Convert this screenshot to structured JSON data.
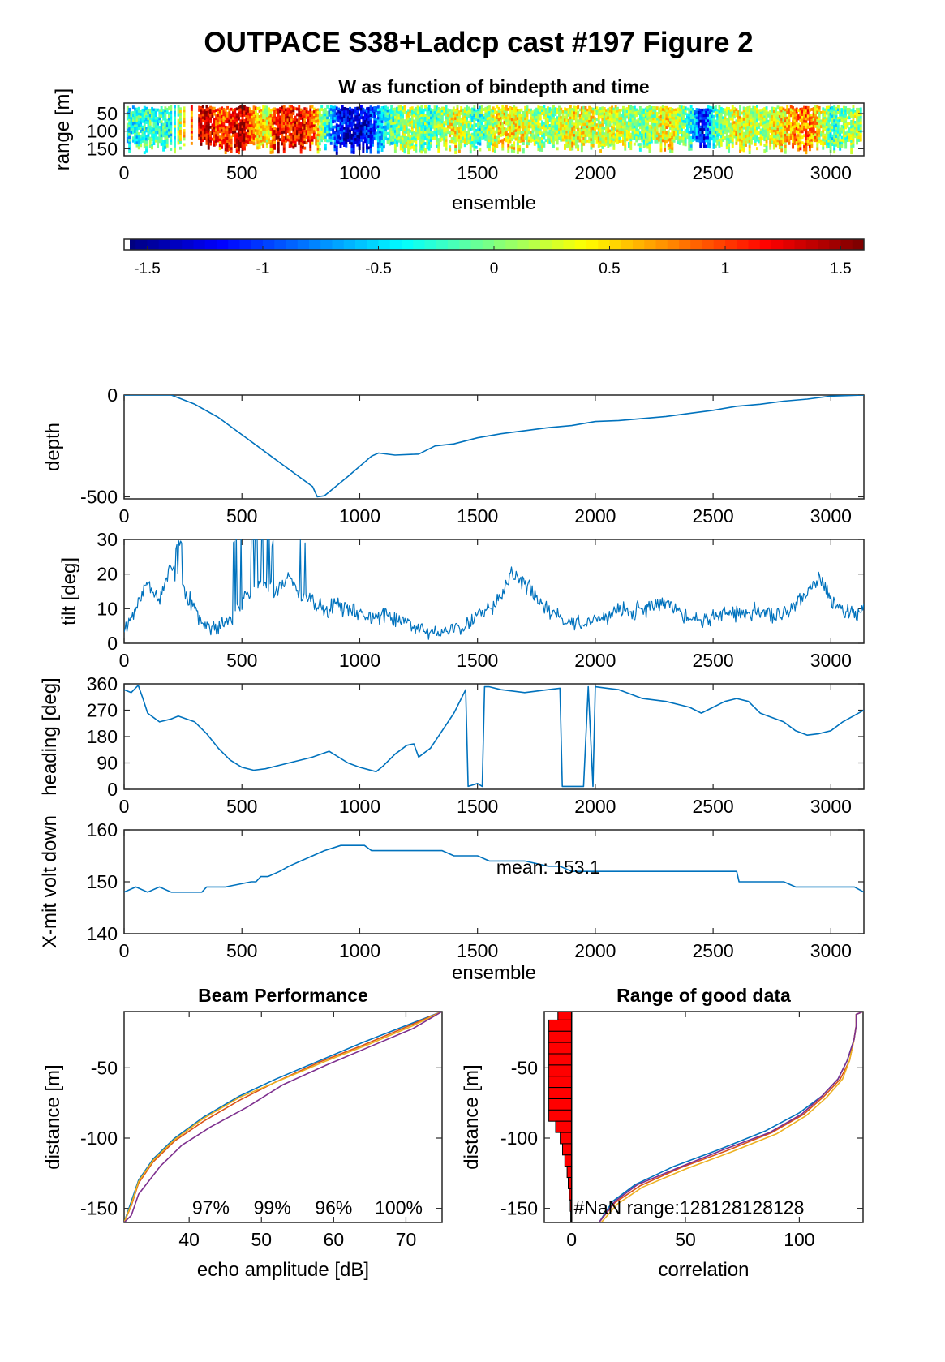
{
  "figure_title": "OUTPACE S38+Ladcp cast #197 Figure 2",
  "colors": {
    "line": "#0072BD",
    "beam_colors": [
      "#0072BD",
      "#D95319",
      "#EDB120",
      "#7E2F8E"
    ],
    "bar_fill": "#ff0000",
    "colormap": "jet"
  },
  "chart_data": [
    {
      "id": "w-panel",
      "type": "heatmap",
      "title": "W as function of bindepth and time",
      "xlabel": "ensemble",
      "ylabel": "range [m]",
      "xlim": [
        0,
        3140
      ],
      "ylim": [
        20,
        170
      ],
      "y_reversed": true,
      "x_ticks": [
        "0",
        "500",
        "1000",
        "1500",
        "2000",
        "2500",
        "3000"
      ],
      "y_ticks": [
        "50",
        "100",
        "150"
      ],
      "colorbar": {
        "clim": [
          -1.6,
          1.6
        ],
        "ticks": [
          "-1.5",
          "-1",
          "-0.5",
          "0",
          "0.5",
          "1",
          "1.5"
        ]
      },
      "w_profile": {
        "ensemble": [
          0,
          100,
          200,
          300,
          350,
          400,
          450,
          500,
          550,
          600,
          650,
          700,
          750,
          800,
          850,
          900,
          950,
          1000,
          1050,
          1100,
          1200,
          1300,
          1400,
          1500,
          1600,
          1700,
          1800,
          1900,
          2000,
          2100,
          2200,
          2300,
          2400,
          2450,
          2500,
          2600,
          2700,
          2800,
          2900,
          3000,
          3100
        ],
        "w": [
          -0.4,
          -0.2,
          -0.3,
          1.2,
          1.4,
          0.9,
          1.1,
          1.5,
          0.7,
          0.3,
          1.3,
          1.1,
          1.2,
          0.9,
          -0.2,
          -1.1,
          -1.3,
          -1.4,
          -1.0,
          -0.4,
          0.2,
          -0.2,
          0.4,
          -0.3,
          0.5,
          0.3,
          0.0,
          0.4,
          0.3,
          0.2,
          -0.1,
          0.5,
          -0.3,
          -1.3,
          -0.2,
          0.4,
          0.1,
          0.5,
          0.9,
          -0.2,
          0.1
        ]
      }
    },
    {
      "id": "depth-panel",
      "type": "line",
      "title": "",
      "xlabel": "",
      "ylabel": "depth",
      "xlim": [
        0,
        3140
      ],
      "ylim": [
        -510,
        0
      ],
      "x_ticks": [
        "0",
        "500",
        "1000",
        "1500",
        "2000",
        "2500",
        "3000"
      ],
      "y_ticks": [
        "0",
        "-500"
      ],
      "x": [
        0,
        200,
        300,
        400,
        500,
        600,
        700,
        800,
        820,
        850,
        950,
        1050,
        1080,
        1150,
        1250,
        1320,
        1400,
        1500,
        1600,
        1700,
        1800,
        1900,
        2000,
        2100,
        2200,
        2300,
        2400,
        2500,
        2600,
        2700,
        2800,
        2900,
        3000,
        3140
      ],
      "y": [
        0,
        0,
        -45,
        -110,
        -195,
        -280,
        -365,
        -450,
        -500,
        -495,
        -400,
        -300,
        -285,
        -295,
        -290,
        -250,
        -240,
        -210,
        -190,
        -175,
        -160,
        -150,
        -130,
        -125,
        -115,
        -105,
        -90,
        -75,
        -55,
        -45,
        -30,
        -20,
        -5,
        0
      ]
    },
    {
      "id": "tilt-panel",
      "type": "line",
      "title": "",
      "xlabel": "",
      "ylabel": "tilt [deg]",
      "xlim": [
        0,
        3140
      ],
      "ylim": [
        0,
        30
      ],
      "x_ticks": [
        "0",
        "500",
        "1000",
        "1500",
        "2000",
        "2500",
        "3000"
      ],
      "y_ticks": [
        "0",
        "10",
        "20",
        "30"
      ],
      "x": [
        0,
        50,
        100,
        150,
        200,
        250,
        300,
        350,
        400,
        450,
        500,
        550,
        600,
        650,
        700,
        750,
        800,
        850,
        900,
        1000,
        1100,
        1200,
        1300,
        1350,
        1400,
        1450,
        1500,
        1550,
        1600,
        1650,
        1700,
        1800,
        1900,
        1950,
        2000,
        2100,
        2200,
        2300,
        2400,
        2450,
        2500,
        2600,
        2700,
        2800,
        2850,
        2900,
        2950,
        3000,
        3050,
        3100,
        3140
      ],
      "y": [
        4,
        10,
        18,
        13,
        22,
        16,
        10,
        5,
        4,
        7,
        12,
        15,
        18,
        14,
        20,
        14,
        12,
        9,
        11,
        8,
        8,
        6,
        3,
        3,
        4,
        5,
        8,
        10,
        14,
        20,
        17,
        10,
        6,
        5,
        7,
        9,
        10,
        12,
        7,
        6,
        8,
        9,
        9,
        8,
        12,
        14,
        19,
        13,
        10,
        8,
        11
      ],
      "clipped_spikes": [
        [
          210,
          30
        ],
        [
          230,
          27
        ],
        [
          480,
          28
        ],
        [
          550,
          30
        ],
        [
          600,
          30
        ],
        [
          620,
          28
        ],
        [
          760,
          26
        ]
      ]
    },
    {
      "id": "heading-panel",
      "type": "line",
      "title": "",
      "xlabel": "",
      "ylabel": "heading [deg]",
      "xlim": [
        0,
        3140
      ],
      "ylim": [
        0,
        360
      ],
      "x_ticks": [
        "0",
        "500",
        "1000",
        "1500",
        "2000",
        "2500",
        "3000"
      ],
      "y_ticks": [
        "0",
        "90",
        "180",
        "270",
        "360"
      ],
      "x": [
        0,
        30,
        60,
        80,
        100,
        150,
        200,
        230,
        300,
        350,
        400,
        450,
        500,
        550,
        600,
        700,
        800,
        870,
        950,
        1000,
        1070,
        1100,
        1150,
        1200,
        1230,
        1250,
        1300,
        1350,
        1400,
        1450,
        1460,
        1500,
        1520,
        1530,
        1550,
        1600,
        1700,
        1800,
        1850,
        1860,
        1950,
        1970,
        1990,
        2000,
        2050,
        2100,
        2200,
        2300,
        2400,
        2450,
        2500,
        2550,
        2600,
        2650,
        2700,
        2800,
        2850,
        2900,
        2950,
        3000,
        3050,
        3140
      ],
      "y": [
        340,
        330,
        355,
        310,
        260,
        230,
        240,
        250,
        230,
        190,
        140,
        100,
        75,
        65,
        70,
        90,
        110,
        130,
        90,
        75,
        60,
        80,
        120,
        150,
        155,
        110,
        140,
        200,
        260,
        340,
        10,
        20,
        10,
        350,
        350,
        340,
        330,
        340,
        345,
        10,
        10,
        350,
        10,
        350,
        345,
        340,
        310,
        300,
        280,
        260,
        280,
        300,
        310,
        300,
        260,
        230,
        200,
        185,
        190,
        200,
        230,
        270
      ]
    },
    {
      "id": "volt-panel",
      "type": "line",
      "title": "",
      "xlabel": "ensemble",
      "ylabel": "X-mit volt down",
      "xlim": [
        0,
        3140
      ],
      "ylim": [
        140,
        160
      ],
      "x_ticks": [
        "0",
        "500",
        "1000",
        "1500",
        "2000",
        "2500",
        "3000"
      ],
      "y_ticks": [
        "140",
        "150",
        "160"
      ],
      "annotation": "mean: 153.1",
      "x": [
        0,
        50,
        100,
        150,
        200,
        330,
        350,
        430,
        540,
        560,
        580,
        610,
        660,
        700,
        750,
        800,
        850,
        920,
        940,
        1020,
        1050,
        1100,
        1200,
        1350,
        1400,
        1500,
        1550,
        1600,
        1700,
        1800,
        1850,
        1900,
        1950,
        2000,
        2100,
        2400,
        2450,
        2500,
        2600,
        2610,
        2800,
        2850,
        3000,
        3100,
        3140
      ],
      "y": [
        148,
        149,
        148,
        149,
        148,
        148,
        149,
        149,
        150,
        150,
        151,
        151,
        152,
        153,
        154,
        155,
        156,
        157,
        157,
        157,
        156,
        156,
        156,
        156,
        155,
        155,
        154,
        154,
        154,
        153,
        153,
        152,
        152,
        152,
        152,
        152,
        152,
        152,
        152,
        150,
        150,
        149,
        149,
        149,
        148
      ]
    },
    {
      "id": "beam-panel",
      "type": "line",
      "title": "Beam Performance",
      "xlabel": "echo amplitude [dB]",
      "ylabel": "distance [m]",
      "xlim": [
        31,
        75
      ],
      "ylim": [
        -160,
        -10
      ],
      "x_ticks": [
        "40",
        "50",
        "60",
        "70"
      ],
      "y_ticks": [
        "-50",
        "-100",
        "-150"
      ],
      "labels": [
        "97%",
        "99%",
        "96%",
        "100%"
      ],
      "series": [
        {
          "x": [
            31,
            32,
            33,
            35,
            38,
            42,
            47,
            52,
            58,
            64,
            70,
            75
          ],
          "y": [
            -160,
            -145,
            -130,
            -115,
            -100,
            -85,
            -70,
            -58,
            -45,
            -32,
            -20,
            -10
          ]
        },
        {
          "x": [
            31,
            32,
            33,
            35,
            38,
            42,
            47,
            52,
            58,
            64,
            70,
            75
          ],
          "y": [
            -160,
            -148,
            -132,
            -117,
            -102,
            -88,
            -73,
            -60,
            -46,
            -34,
            -21,
            -10
          ]
        },
        {
          "x": [
            31,
            32,
            33,
            35,
            38,
            42,
            47,
            53,
            59,
            65,
            71,
            75
          ],
          "y": [
            -160,
            -147,
            -131,
            -116,
            -101,
            -86,
            -71,
            -58,
            -45,
            -33,
            -20,
            -10
          ]
        },
        {
          "x": [
            31,
            32,
            33,
            36,
            39,
            43,
            48,
            53,
            59,
            65,
            71,
            75
          ],
          "y": [
            -160,
            -155,
            -140,
            -120,
            -105,
            -92,
            -78,
            -62,
            -48,
            -35,
            -22,
            -10
          ]
        }
      ]
    },
    {
      "id": "range-panel",
      "type": "line",
      "title": "Range of good data",
      "xlabel": "correlation",
      "ylabel": "distance [m]",
      "xlim": [
        -12,
        128
      ],
      "ylim": [
        -160,
        -10
      ],
      "x_ticks": [
        "0",
        "50",
        "100"
      ],
      "y_ticks": [
        "-50",
        "-100",
        "-150"
      ],
      "annotation": "#NaN range:128128128128",
      "nan_bars": {
        "distance": [
          -12,
          -20,
          -28,
          -36,
          -44,
          -52,
          -60,
          -68,
          -76,
          -84,
          -92,
          -100,
          -108,
          -116,
          -124,
          -132,
          -140,
          -148,
          -156
        ],
        "count": [
          6,
          10,
          10,
          10,
          10,
          10,
          10,
          10,
          10,
          10,
          7,
          5,
          4,
          3,
          2,
          1.5,
          1,
          0.6,
          0.4
        ]
      },
      "series": [
        {
          "x": [
            12,
            18,
            28,
            45,
            65,
            85,
            100,
            110,
            117,
            121,
            124,
            125,
            125,
            128
          ],
          "y": [
            -160,
            -145,
            -133,
            -120,
            -108,
            -95,
            -82,
            -70,
            -58,
            -45,
            -30,
            -20,
            -12,
            -10
          ]
        },
        {
          "x": [
            12,
            19,
            30,
            48,
            68,
            88,
            102,
            111,
            118,
            122,
            124,
            125,
            125,
            128
          ],
          "y": [
            -160,
            -146,
            -134,
            -121,
            -109,
            -96,
            -83,
            -70,
            -58,
            -45,
            -30,
            -20,
            -12,
            -10
          ]
        },
        {
          "x": [
            13,
            20,
            31,
            50,
            70,
            90,
            103,
            112,
            119,
            122,
            124,
            125,
            125,
            128
          ],
          "y": [
            -160,
            -147,
            -135,
            -122,
            -110,
            -97,
            -84,
            -71,
            -58,
            -45,
            -30,
            -20,
            -12,
            -10
          ]
        },
        {
          "x": [
            12,
            19,
            29,
            47,
            67,
            87,
            101,
            110,
            117,
            121,
            124,
            125,
            125,
            128
          ],
          "y": [
            -160,
            -145,
            -133,
            -121,
            -108,
            -96,
            -83,
            -70,
            -58,
            -45,
            -30,
            -20,
            -12,
            -10
          ]
        }
      ]
    }
  ]
}
